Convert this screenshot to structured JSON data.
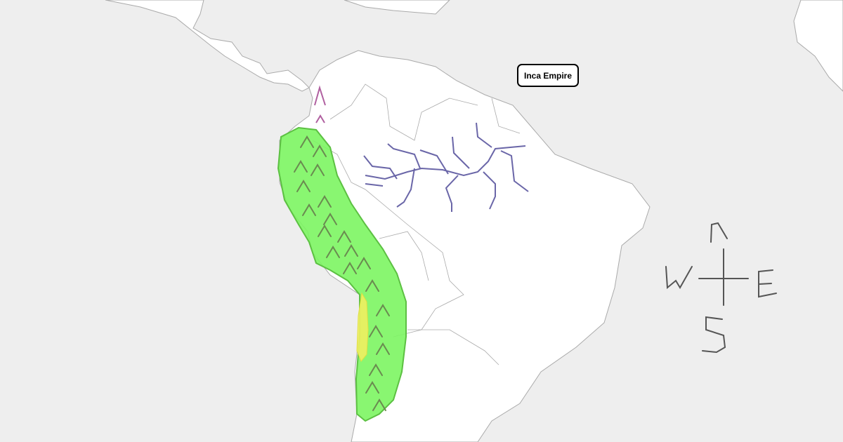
{
  "map": {
    "label": "Inca Empire",
    "compass": {
      "north": "N",
      "south": "S",
      "east": "E",
      "west": "W"
    },
    "colors": {
      "ocean": "#eeeeee",
      "land": "#ffffff",
      "border": "#aaaaaa",
      "empire": "#7cf562",
      "highlight": "#f0f060",
      "rivers": "#6a66a8",
      "mountains": "#6a8a50",
      "compass": "#555555"
    },
    "icons": [
      "mountain-icon",
      "river-line",
      "compass-rose-icon"
    ]
  }
}
